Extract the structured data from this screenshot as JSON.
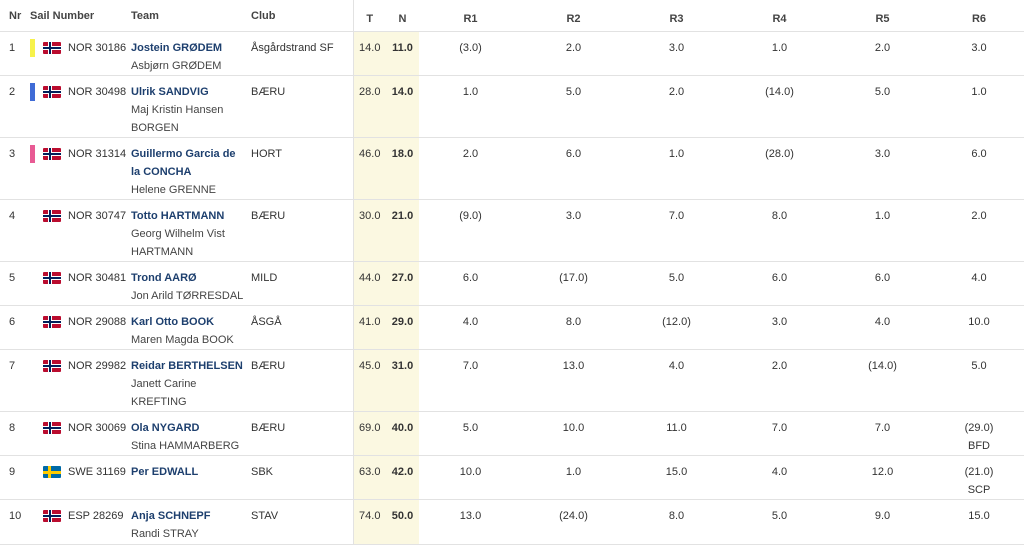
{
  "headers": {
    "nr": "Nr",
    "sail": "Sail Number",
    "team": "Team",
    "club": "Club",
    "t": "T",
    "n": "N",
    "races": [
      "R1",
      "R2",
      "R3",
      "R4",
      "R5",
      "R6"
    ]
  },
  "colors": {
    "skipper": "#1d3f6e",
    "highlight_column": "#fbf8e1",
    "marker_yellow": "#f7f24a",
    "marker_blue": "#3f6bd6",
    "marker_pink": "#e85a94"
  },
  "rows": [
    {
      "nr": "1",
      "marker": "yellow",
      "flag": "norway-flag-icon",
      "sail": "NOR 30186",
      "skipper": "Jostein GRØDEM",
      "crew": [
        "Asbjørn GRØDEM"
      ],
      "club": "Åsgårdstrand SF",
      "t": "14.0",
      "n": "11.0",
      "r": [
        "(3.0)",
        "2.0",
        "3.0",
        "1.0",
        "2.0",
        "3.0"
      ],
      "codes": [
        "",
        "",
        "",
        "",
        "",
        ""
      ]
    },
    {
      "nr": "2",
      "marker": "blue",
      "flag": "norway-flag-icon",
      "sail": "NOR 30498",
      "skipper": "Ulrik SANDVIG",
      "crew": [
        "Maj Kristin Hansen",
        "BORGEN"
      ],
      "club": "BÆRU",
      "t": "28.0",
      "n": "14.0",
      "r": [
        "1.0",
        "5.0",
        "2.0",
        "(14.0)",
        "5.0",
        "1.0"
      ],
      "codes": [
        "",
        "",
        "",
        "",
        "",
        ""
      ]
    },
    {
      "nr": "3",
      "marker": "pink",
      "flag": "norway-flag-icon",
      "sail": "NOR 31314",
      "skipper": "Guillermo Garcia de la CONCHA",
      "crew": [
        "Helene GRENNE"
      ],
      "club": "HORT",
      "t": "46.0",
      "n": "18.0",
      "r": [
        "2.0",
        "6.0",
        "1.0",
        "(28.0)",
        "3.0",
        "6.0"
      ],
      "codes": [
        "",
        "",
        "",
        "",
        "",
        ""
      ]
    },
    {
      "nr": "4",
      "marker": "none",
      "flag": "norway-flag-icon",
      "sail": "NOR 30747",
      "skipper": "Totto HARTMANN",
      "crew": [
        "Georg Wilhelm Vist",
        "HARTMANN"
      ],
      "club": "BÆRU",
      "t": "30.0",
      "n": "21.0",
      "r": [
        "(9.0)",
        "3.0",
        "7.0",
        "8.0",
        "1.0",
        "2.0"
      ],
      "codes": [
        "",
        "",
        "",
        "",
        "",
        ""
      ]
    },
    {
      "nr": "5",
      "marker": "none",
      "flag": "norway-flag-icon",
      "sail": "NOR 30481",
      "skipper": "Trond AARØ",
      "crew": [
        "Jon Arild TØRRESDAL"
      ],
      "club": "MILD",
      "t": "44.0",
      "n": "27.0",
      "r": [
        "6.0",
        "(17.0)",
        "5.0",
        "6.0",
        "6.0",
        "4.0"
      ],
      "codes": [
        "",
        "",
        "",
        "",
        "",
        ""
      ]
    },
    {
      "nr": "6",
      "marker": "none",
      "flag": "norway-flag-icon",
      "sail": "NOR 29088",
      "skipper": "Karl Otto BOOK",
      "crew": [
        "Maren Magda BOOK"
      ],
      "club": "ÅSGÅ",
      "t": "41.0",
      "n": "29.0",
      "r": [
        "4.0",
        "8.0",
        "(12.0)",
        "3.0",
        "4.0",
        "10.0"
      ],
      "codes": [
        "",
        "",
        "",
        "",
        "",
        ""
      ]
    },
    {
      "nr": "7",
      "marker": "none",
      "flag": "norway-flag-icon",
      "sail": "NOR 29982",
      "skipper": "Reidar BERTHELSEN",
      "crew": [
        "Janett Carine",
        "KREFTING"
      ],
      "club": "BÆRU",
      "t": "45.0",
      "n": "31.0",
      "r": [
        "7.0",
        "13.0",
        "4.0",
        "2.0",
        "(14.0)",
        "5.0"
      ],
      "codes": [
        "",
        "",
        "",
        "",
        "",
        ""
      ]
    },
    {
      "nr": "8",
      "marker": "none",
      "flag": "norway-flag-icon",
      "sail": "NOR 30069",
      "skipper": "Ola NYGARD",
      "crew": [
        "Stina HAMMARBERG"
      ],
      "club": "BÆRU",
      "t": "69.0",
      "n": "40.0",
      "r": [
        "5.0",
        "10.0",
        "11.0",
        "7.0",
        "7.0",
        "(29.0)"
      ],
      "codes": [
        "",
        "",
        "",
        "",
        "",
        "BFD"
      ]
    },
    {
      "nr": "9",
      "marker": "none",
      "flag": "sweden-flag-icon",
      "sail": "SWE 31169",
      "skipper": "Per EDWALL",
      "crew": [],
      "club": "SBK",
      "t": "63.0",
      "n": "42.0",
      "r": [
        "10.0",
        "1.0",
        "15.0",
        "4.0",
        "12.0",
        "(21.0)"
      ],
      "codes": [
        "",
        "",
        "",
        "",
        "",
        "SCP"
      ]
    },
    {
      "nr": "10",
      "marker": "none",
      "flag": "norway-flag-icon",
      "sail": "ESP 28269",
      "skipper": "Anja SCHNEPF",
      "crew": [
        "Randi STRAY"
      ],
      "club": "STAV",
      "t": "74.0",
      "n": "50.0",
      "r": [
        "13.0",
        "(24.0)",
        "8.0",
        "5.0",
        "9.0",
        "15.0"
      ],
      "codes": [
        "",
        "",
        "",
        "",
        "",
        ""
      ]
    }
  ]
}
